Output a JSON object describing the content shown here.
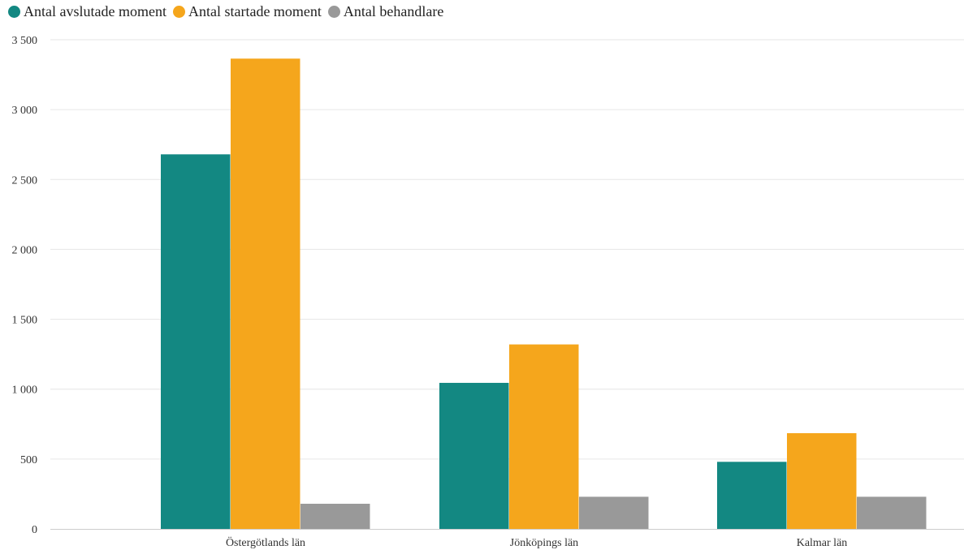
{
  "legend": {
    "items": [
      {
        "label": "Antal avslutade moment",
        "color": "#138882"
      },
      {
        "label": "Antal startade moment",
        "color": "#f5a61c"
      },
      {
        "label": "Antal behandlare",
        "color": "#999999"
      }
    ]
  },
  "chart_data": {
    "type": "bar",
    "categories": [
      "Östergötlands län",
      "Jönköpings län",
      "Kalmar län"
    ],
    "series": [
      {
        "name": "Antal avslutade moment",
        "color": "#138882",
        "values": [
          2680,
          1045,
          480
        ]
      },
      {
        "name": "Antal startade moment",
        "color": "#f5a61c",
        "values": [
          3365,
          1320,
          685
        ]
      },
      {
        "name": "Antal behandlare",
        "color": "#999999",
        "values": [
          180,
          230,
          230
        ]
      }
    ],
    "y_ticks": [
      "0",
      "500",
      "1 000",
      "1 500",
      "2 000",
      "2 500",
      "3 000",
      "3 500"
    ],
    "ylim": [
      0,
      3500
    ],
    "grid": true,
    "legend_position": "top-left",
    "title": "",
    "xlabel": "",
    "ylabel": ""
  }
}
